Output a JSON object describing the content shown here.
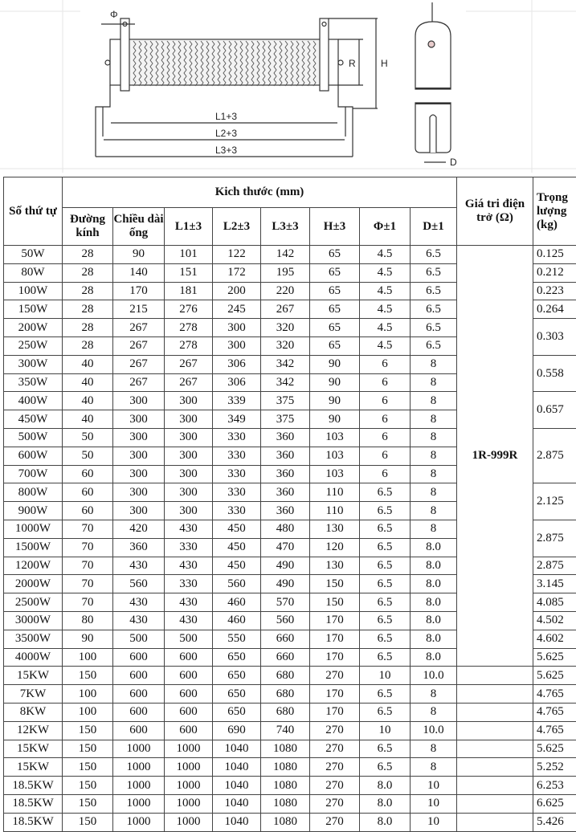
{
  "diagram": {
    "labels": {
      "phi": "Φ",
      "r": "R",
      "h": "H",
      "l1": "L1+3",
      "l2": "L2+3",
      "l3": "L3+3",
      "d": "D"
    }
  },
  "table": {
    "headers": {
      "index": "Số thứ tự",
      "dimensions": "Kich thước (mm)",
      "diameter": "Đường kính",
      "tube_length": "Chiều dài ống",
      "l1": "L1±3",
      "l2": "L2±3",
      "l3": "L3±3",
      "h": "H±3",
      "phi": "Φ±1",
      "d": "D±1",
      "resistance": "Giá tri điện trở (Ω)",
      "weight": "Trọng lượng (kg)"
    },
    "resistance_merged": "1R-999R",
    "rows": [
      [
        "50W",
        "28",
        "90",
        "101",
        "122",
        "142",
        "65",
        "4.5",
        "6.5"
      ],
      [
        "80W",
        "28",
        "140",
        "151",
        "172",
        "195",
        "65",
        "4.5",
        "6.5"
      ],
      [
        "100W",
        "28",
        "170",
        "181",
        "200",
        "220",
        "65",
        "4.5",
        "6.5"
      ],
      [
        "150W",
        "28",
        "215",
        "276",
        "245",
        "267",
        "65",
        "4.5",
        "6.5"
      ],
      [
        "200W",
        "28",
        "267",
        "278",
        "300",
        "320",
        "65",
        "4.5",
        "6.5"
      ],
      [
        "250W",
        "28",
        "267",
        "278",
        "300",
        "320",
        "65",
        "4.5",
        "6.5"
      ],
      [
        "300W",
        "40",
        "267",
        "267",
        "306",
        "342",
        "90",
        "6",
        "8"
      ],
      [
        "350W",
        "40",
        "267",
        "267",
        "306",
        "342",
        "90",
        "6",
        "8"
      ],
      [
        "400W",
        "40",
        "300",
        "300",
        "339",
        "375",
        "90",
        "6",
        "8"
      ],
      [
        "450W",
        "40",
        "300",
        "300",
        "349",
        "375",
        "90",
        "6",
        "8"
      ],
      [
        "500W",
        "50",
        "300",
        "300",
        "330",
        "360",
        "103",
        "6",
        "8"
      ],
      [
        "600W",
        "50",
        "300",
        "300",
        "330",
        "360",
        "103",
        "6",
        "8"
      ],
      [
        "700W",
        "60",
        "300",
        "300",
        "330",
        "360",
        "103",
        "6",
        "8"
      ],
      [
        "800W",
        "60",
        "300",
        "300",
        "330",
        "360",
        "110",
        "6.5",
        "8"
      ],
      [
        "900W",
        "60",
        "300",
        "300",
        "330",
        "360",
        "110",
        "6.5",
        "8"
      ],
      [
        "1000W",
        "70",
        "420",
        "430",
        "450",
        "480",
        "130",
        "6.5",
        "8"
      ],
      [
        "1500W",
        "70",
        "360",
        "330",
        "450",
        "470",
        "120",
        "6.5",
        "8.0"
      ],
      [
        "1200W",
        "70",
        "430",
        "430",
        "450",
        "490",
        "130",
        "6.5",
        "8.0"
      ],
      [
        "2000W",
        "70",
        "560",
        "330",
        "560",
        "490",
        "150",
        "6.5",
        "8.0"
      ],
      [
        "2500W",
        "70",
        "430",
        "430",
        "460",
        "570",
        "150",
        "6.5",
        "8.0"
      ],
      [
        "3000W",
        "80",
        "430",
        "430",
        "460",
        "560",
        "170",
        "6.5",
        "8.0"
      ],
      [
        "3500W",
        "90",
        "500",
        "500",
        "550",
        "660",
        "170",
        "6.5",
        "8.0"
      ],
      [
        "4000W",
        "100",
        "600",
        "600",
        "650",
        "660",
        "170",
        "6.5",
        "8.0"
      ],
      [
        "15KW",
        "150",
        "600",
        "600",
        "650",
        "680",
        "270",
        "10",
        "10.0"
      ],
      [
        "7KW",
        "100",
        "600",
        "600",
        "650",
        "680",
        "170",
        "6.5",
        "8"
      ],
      [
        "8KW",
        "100",
        "600",
        "600",
        "650",
        "680",
        "170",
        "6.5",
        "8"
      ],
      [
        "12KW",
        "150",
        "600",
        "600",
        "690",
        "740",
        "270",
        "10",
        "10.0"
      ],
      [
        "15KW",
        "150",
        "1000",
        "1000",
        "1040",
        "1080",
        "270",
        "6.5",
        "8"
      ],
      [
        "15KW",
        "150",
        "1000",
        "1000",
        "1040",
        "1080",
        "270",
        "6.5",
        "8"
      ],
      [
        "18.5KW",
        "150",
        "1000",
        "1000",
        "1040",
        "1080",
        "270",
        "8.0",
        "10"
      ],
      [
        "18.5KW",
        "150",
        "1000",
        "1000",
        "1040",
        "1080",
        "270",
        "8.0",
        "10"
      ],
      [
        "18.5KW",
        "150",
        "1000",
        "1000",
        "1040",
        "1080",
        "270",
        "8.0",
        "10"
      ]
    ],
    "weights": [
      {
        "value": "0.125",
        "rows": 1
      },
      {
        "value": "0.212",
        "rows": 1
      },
      {
        "value": "0.223",
        "rows": 1
      },
      {
        "value": "0.264",
        "rows": 1
      },
      {
        "value": "0.303",
        "rows": 2
      },
      {
        "value": "0.558",
        "rows": 2
      },
      {
        "value": "0.657",
        "rows": 2
      },
      {
        "value": "2.875",
        "rows": 3
      },
      {
        "value": "2.125",
        "rows": 2
      },
      {
        "value": "2.875",
        "rows": 2
      },
      {
        "value": "2.875",
        "rows": 1
      },
      {
        "value": "3.145",
        "rows": 1
      },
      {
        "value": "4.085",
        "rows": 1
      },
      {
        "value": "4.502",
        "rows": 1
      },
      {
        "value": "4.602",
        "rows": 1
      },
      {
        "value": "5.625",
        "rows": 1
      },
      {
        "value": "5.625",
        "rows": 1
      },
      {
        "value": "4.765",
        "rows": 1
      },
      {
        "value": "4.765",
        "rows": 1
      },
      {
        "value": "4.765",
        "rows": 1
      },
      {
        "value": "5.625",
        "rows": 1
      },
      {
        "value": "5.252",
        "rows": 1
      },
      {
        "value": "6.253",
        "rows": 1
      },
      {
        "value": "6.625",
        "rows": 1
      },
      {
        "value": "5.426",
        "rows": 1
      }
    ]
  }
}
